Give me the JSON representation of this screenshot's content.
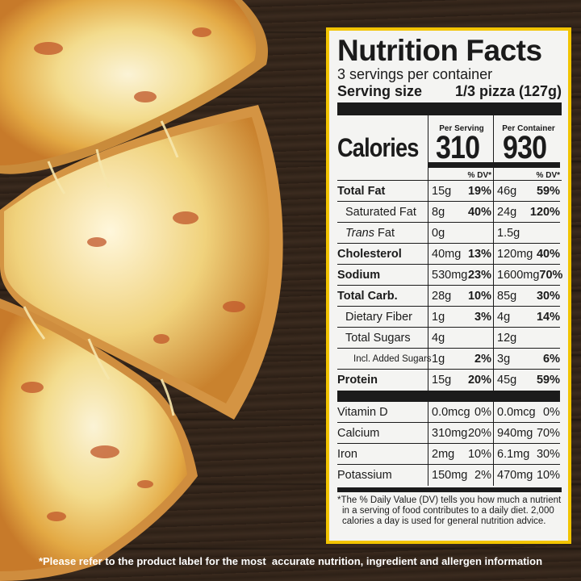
{
  "panel": {
    "title": "Nutrition Facts",
    "servings_per_container": "3 servings per container",
    "serving_size_label": "Serving size",
    "serving_size_value": "1/3 pizza (127g)",
    "col_per_serving": "Per Serving",
    "col_per_container": "Per Container",
    "calories_label": "Calories",
    "calories_per_serving": "310",
    "calories_per_container": "930",
    "dv_label": "% DV*",
    "nutrients": [
      {
        "label": "Total Fat",
        "ps_amt": "15g",
        "ps_dv": "19%",
        "pc_amt": "46g",
        "pc_dv": "59%"
      },
      {
        "label": "Saturated Fat",
        "ps_amt": "8g",
        "ps_dv": "40%",
        "pc_amt": "24g",
        "pc_dv": "120%"
      },
      {
        "label_italic": "Trans",
        "label_rest": " Fat",
        "ps_amt": "0g",
        "ps_dv": "",
        "pc_amt": "1.5g",
        "pc_dv": ""
      },
      {
        "label": "Cholesterol",
        "ps_amt": "40mg",
        "ps_dv": "13%",
        "pc_amt": "120mg",
        "pc_dv": "40%"
      },
      {
        "label": "Sodium",
        "ps_amt": "530mg",
        "ps_dv": "23%",
        "pc_amt": "1600mg",
        "pc_dv": "70%"
      },
      {
        "label": "Total Carb.",
        "ps_amt": "28g",
        "ps_dv": "10%",
        "pc_amt": "85g",
        "pc_dv": "30%"
      },
      {
        "label": "Dietary Fiber",
        "ps_amt": "1g",
        "ps_dv": "3%",
        "pc_amt": "4g",
        "pc_dv": "14%"
      },
      {
        "label": "Total Sugars",
        "ps_amt": "4g",
        "ps_dv": "",
        "pc_amt": "12g",
        "pc_dv": ""
      },
      {
        "label": "Incl. Added Sugars",
        "ps_amt": "1g",
        "ps_dv": "2%",
        "pc_amt": "3g",
        "pc_dv": "6%"
      },
      {
        "label": "Protein",
        "ps_amt": "15g",
        "ps_dv": "20%",
        "pc_amt": "45g",
        "pc_dv": "59%"
      }
    ],
    "minerals": [
      {
        "label": "Vitamin D",
        "ps_amt": "0.0mcg",
        "ps_dv": "0%",
        "pc_amt": "0.0mcg",
        "pc_dv": "0%"
      },
      {
        "label": "Calcium",
        "ps_amt": "310mg",
        "ps_dv": "20%",
        "pc_amt": "940mg",
        "pc_dv": "70%"
      },
      {
        "label": "Iron",
        "ps_amt": "2mg",
        "ps_dv": "10%",
        "pc_amt": "6.1mg",
        "pc_dv": "30%"
      },
      {
        "label": "Potassium",
        "ps_amt": "150mg",
        "ps_dv": "2%",
        "pc_amt": "470mg",
        "pc_dv": "10%"
      }
    ],
    "footnote_1": "*The % Daily Value (DV) tells you how much a nutrient",
    "footnote_2": "in a serving of food contributes to a daily diet. 2,000",
    "footnote_3": "calories a day is used for general nutrition advice."
  },
  "disclaimer": "*Please refer to the product label for the most  accurate nutrition, ingredient and allergen information",
  "colors": {
    "border": "#f2c400",
    "panel_bg": "#f4f4f2",
    "text": "#1b1b1b"
  }
}
